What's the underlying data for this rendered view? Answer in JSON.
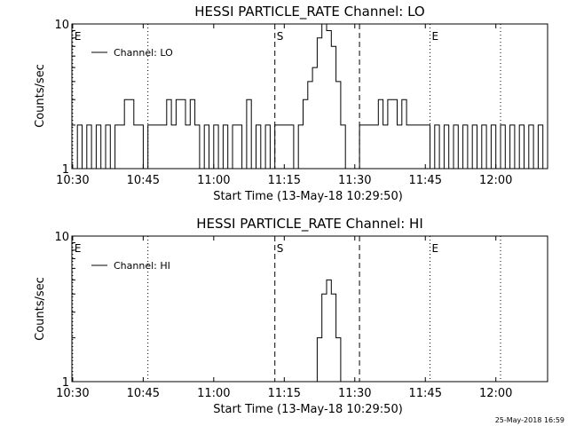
{
  "footer": {
    "timestamp": "25-May-2018 16:59"
  },
  "chart_data": [
    {
      "type": "line",
      "title": "HESSI PARTICLE_RATE Channel: LO",
      "xlabel": "Start Time (13-May-18 10:29:50)",
      "ylabel": "Counts/sec",
      "yscale": "log",
      "ylim": [
        1,
        10
      ],
      "ytick_labels": [
        "1",
        "10"
      ],
      "xlim": [
        "10:29:50",
        "12:11:00"
      ],
      "xtick_labels": [
        "10:30",
        "10:45",
        "11:00",
        "11:15",
        "11:30",
        "11:45",
        "12:00"
      ],
      "legend": {
        "position": "top-left",
        "entries": [
          "Channel: LO"
        ]
      },
      "markers": [
        {
          "label": "E",
          "time": "10:30",
          "style": "dotted"
        },
        {
          "label": "",
          "time": "10:46",
          "style": "dotted"
        },
        {
          "label": "S",
          "time": "11:13",
          "style": "dashed"
        },
        {
          "label": "",
          "time": "11:31",
          "style": "dashed"
        },
        {
          "label": "E",
          "time": "11:46",
          "style": "dotted"
        },
        {
          "label": "",
          "time": "12:01",
          "style": "dotted"
        }
      ],
      "series": [
        {
          "name": "Channel: LO",
          "x": [
            "10:30",
            "10:31",
            "10:32",
            "10:33",
            "10:34",
            "10:35",
            "10:36",
            "10:37",
            "10:38",
            "10:39",
            "10:40",
            "10:41",
            "10:42",
            "10:43",
            "10:44",
            "10:45",
            "10:46",
            "10:47",
            "10:48",
            "10:49",
            "10:50",
            "10:51",
            "10:52",
            "10:53",
            "10:54",
            "10:55",
            "10:56",
            "10:57",
            "10:58",
            "10:59",
            "11:00",
            "11:01",
            "11:02",
            "11:03",
            "11:04",
            "11:05",
            "11:06",
            "11:07",
            "11:08",
            "11:09",
            "11:10",
            "11:11",
            "11:12",
            "11:13",
            "11:14",
            "11:15",
            "11:16",
            "11:17",
            "11:18",
            "11:19",
            "11:20",
            "11:21",
            "11:22",
            "11:23",
            "11:24",
            "11:25",
            "11:26",
            "11:27",
            "11:28",
            "11:29",
            "11:30",
            "11:31",
            "11:32",
            "11:33",
            "11:34",
            "11:35",
            "11:36",
            "11:37",
            "11:38",
            "11:39",
            "11:40",
            "11:41",
            "11:42",
            "11:43",
            "11:44",
            "11:45",
            "11:46",
            "11:47",
            "11:48",
            "11:49",
            "11:50",
            "11:51",
            "11:52",
            "11:53",
            "11:54",
            "11:55",
            "11:56",
            "11:57",
            "11:58",
            "11:59",
            "12:00",
            "12:01",
            "12:02",
            "12:03",
            "12:04",
            "12:05",
            "12:06",
            "12:07",
            "12:08",
            "12:09",
            "12:10"
          ],
          "values": [
            1,
            2,
            1,
            2,
            1,
            2,
            1,
            2,
            1,
            2,
            2,
            3,
            3,
            2,
            2,
            1,
            2,
            2,
            2,
            2,
            3,
            2,
            3,
            3,
            2,
            3,
            2,
            1,
            2,
            1,
            2,
            1,
            2,
            1,
            2,
            2,
            1,
            3,
            1,
            2,
            1,
            2,
            1,
            2,
            2,
            2,
            2,
            1,
            2,
            3,
            4,
            5,
            8,
            10,
            9,
            7,
            4,
            2,
            1,
            1,
            1,
            2,
            2,
            2,
            2,
            3,
            2,
            3,
            3,
            2,
            3,
            2,
            2,
            2,
            2,
            2,
            1,
            2,
            1,
            2,
            1,
            2,
            1,
            2,
            1,
            2,
            1,
            2,
            1,
            2,
            1,
            2,
            1,
            2,
            1,
            2,
            1,
            2,
            1,
            2,
            1
          ]
        }
      ]
    },
    {
      "type": "line",
      "title": "HESSI PARTICLE_RATE Channel: HI",
      "xlabel": "Start Time (13-May-18 10:29:50)",
      "ylabel": "Counts/sec",
      "yscale": "log",
      "ylim": [
        1,
        10
      ],
      "ytick_labels": [
        "1",
        "10"
      ],
      "xlim": [
        "10:29:50",
        "12:11:00"
      ],
      "xtick_labels": [
        "10:30",
        "10:45",
        "11:00",
        "11:15",
        "11:30",
        "11:45",
        "12:00"
      ],
      "legend": {
        "position": "top-left",
        "entries": [
          "Channel: HI"
        ]
      },
      "markers": [
        {
          "label": "E",
          "time": "10:30",
          "style": "dotted"
        },
        {
          "label": "",
          "time": "10:46",
          "style": "dotted"
        },
        {
          "label": "S",
          "time": "11:13",
          "style": "dashed"
        },
        {
          "label": "",
          "time": "11:31",
          "style": "dashed"
        },
        {
          "label": "E",
          "time": "11:46",
          "style": "dotted"
        },
        {
          "label": "",
          "time": "12:01",
          "style": "dotted"
        }
      ],
      "series": [
        {
          "name": "Channel: HI",
          "x": [
            "11:21",
            "11:22",
            "11:23",
            "11:24",
            "11:25",
            "11:26",
            "11:27"
          ],
          "values": [
            1,
            2,
            4,
            5,
            4,
            2,
            1
          ]
        }
      ]
    }
  ]
}
